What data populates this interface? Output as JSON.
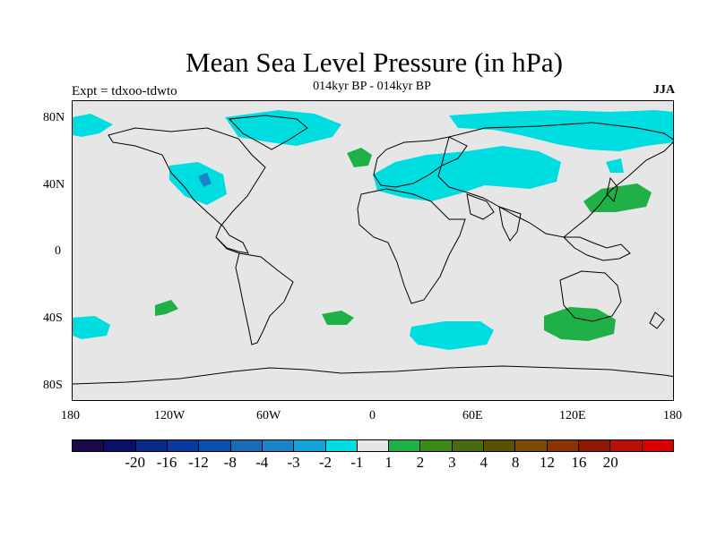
{
  "title": "Mean Sea Level Pressure (in hPa)",
  "subtitle": "014kyr BP - 014kyr BP",
  "left_label": "Expt = tdxoo-tdwto",
  "season": "JJA",
  "lat_ticks": [
    "80N",
    "40N",
    "0",
    "40S",
    "80S"
  ],
  "lon_ticks": [
    "180",
    "120W",
    "60W",
    "0",
    "60E",
    "120E",
    "180"
  ],
  "colorbar": {
    "colors": [
      "#1a0a4a",
      "#0a1066",
      "#0a2a88",
      "#0a3aa0",
      "#0a4eae",
      "#1a6ab8",
      "#1a84c8",
      "#14a2d8",
      "#00dde0",
      "#e6e6e6",
      "#20b048",
      "#3c8a18",
      "#4a6a10",
      "#5a5006",
      "#7a4a06",
      "#8a3406",
      "#8e1a06",
      "#b81006",
      "#d80000"
    ],
    "labels": [
      "-20",
      "-16",
      "-12",
      "-8",
      "-4",
      "-3",
      "-2",
      "-1",
      "1",
      "2",
      "3",
      "4",
      "8",
      "12",
      "16",
      "20"
    ]
  },
  "map": {
    "ocean_color": "#e6e6e6",
    "negative_fill": "#00dde0",
    "positive_fill": "#20b048"
  }
}
